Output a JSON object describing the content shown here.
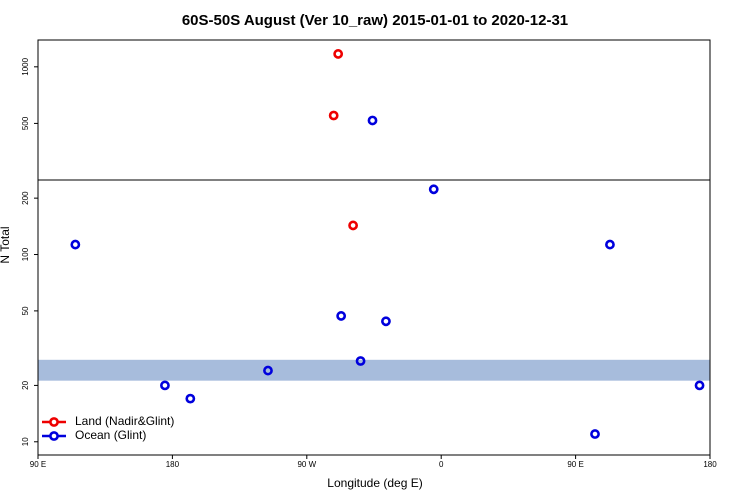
{
  "chart_data": {
    "type": "scatter",
    "title": "60S-50S August (Ver 10_raw)   2015-01-01 to 2020-12-31",
    "xlabel": "Longitude (deg E)",
    "ylabel": "N Total",
    "xlim": [
      90,
      540
    ],
    "xticks": [
      {
        "value": 90,
        "label": "90 E"
      },
      {
        "value": 180,
        "label": "180"
      },
      {
        "value": 270,
        "label": "90 W"
      },
      {
        "value": 360,
        "label": "0"
      },
      {
        "value": 450,
        "label": "90 E"
      },
      {
        "value": 540,
        "label": "180"
      }
    ],
    "panels": [
      {
        "ylim": [
          0,
          1237
        ],
        "yticks": [
          500,
          1000
        ],
        "log": false
      },
      {
        "ylim": [
          8.5,
          250
        ],
        "yticks": [
          10,
          20,
          50,
          100,
          200
        ],
        "log": true
      }
    ],
    "band": [
      21.2,
      27.4
    ],
    "band_color": "#a7bcdc",
    "legend": "lower left",
    "series": [
      {
        "name": "Land (Nadir&Glint)",
        "color": "#ee0000",
        "x": [
          291,
          288,
          301
        ],
        "values": [
          1114,
          570,
          143
        ]
      },
      {
        "name": "Ocean (Glint)",
        "color": "#0000dd",
        "x": [
          314,
          355,
          115,
          473,
          293,
          323,
          306,
          244,
          175,
          192,
          463,
          533
        ],
        "values": [
          526,
          223,
          113,
          113,
          47,
          44,
          27,
          24,
          20,
          17,
          11,
          20
        ]
      }
    ]
  }
}
